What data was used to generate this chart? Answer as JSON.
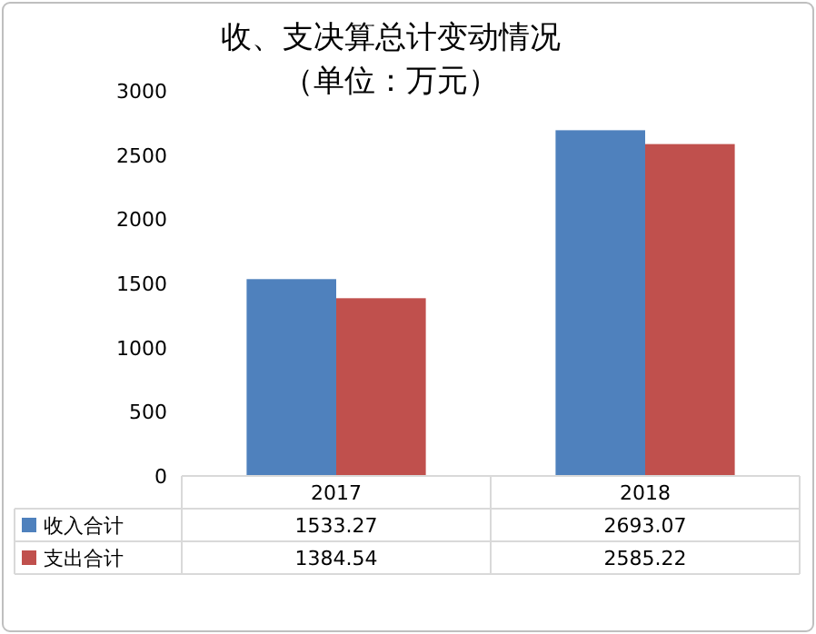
{
  "chart_data": {
    "type": "bar",
    "title": "收、支决算总计变动情况",
    "subtitle": "（单位：万元）",
    "categories": [
      "2017",
      "2018"
    ],
    "series": [
      {
        "name": "收入合计",
        "color": "#4f81bd",
        "values": [
          1533.27,
          2693.07
        ]
      },
      {
        "name": "支出合计",
        "color": "#c0504d",
        "values": [
          1384.54,
          2585.22
        ]
      }
    ],
    "ylim": [
      0,
      3000
    ],
    "yticks": [
      0,
      500,
      1000,
      1500,
      2000,
      2500,
      3000
    ],
    "grid": false,
    "data_labels": true,
    "legend": "bottom"
  }
}
